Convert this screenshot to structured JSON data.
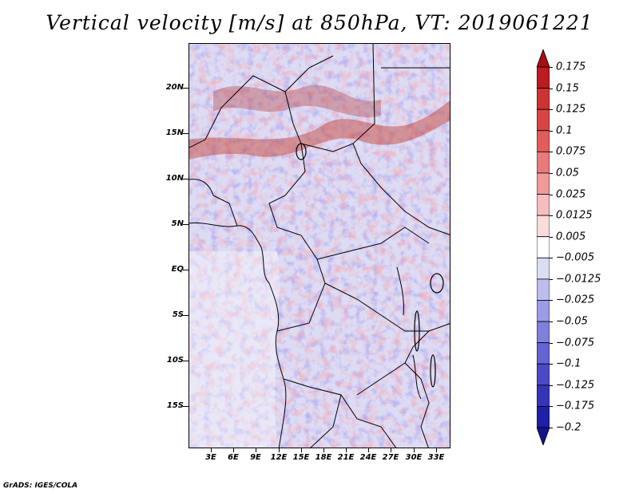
{
  "title": "Vertical velocity [m/s] at 850hPa, VT: 2019061221",
  "footer": "GrADS: IGES/COLA",
  "map": {
    "lat_labels": [
      "20N",
      "15N",
      "10N",
      "5N",
      "EQ",
      "5S",
      "10S",
      "15S"
    ],
    "lon_labels": [
      "3E",
      "6E",
      "9E",
      "12E",
      "15E",
      "18E",
      "21E",
      "24E",
      "27E",
      "30E",
      "33E"
    ]
  },
  "colorbar": {
    "labels": [
      "0.175",
      "0.15",
      "0.125",
      "0.1",
      "0.075",
      "0.05",
      "0.025",
      "0.0125",
      "0.005",
      "−0.005",
      "−0.0125",
      "−0.025",
      "−0.05",
      "−0.075",
      "−0.1",
      "−0.125",
      "−0.175",
      "−0.2"
    ],
    "colors": [
      "#a50f15",
      "#bb1c22",
      "#cc3333",
      "#d94545",
      "#e25c5c",
      "#e97a7a",
      "#f09a9a",
      "#f6bdbd",
      "#fbdcdc",
      "#ffffff",
      "#dcdcf6",
      "#bdbdee",
      "#9c9ce6",
      "#7f7fdc",
      "#6464d2",
      "#4a4ac6",
      "#3535b8",
      "#2020a6",
      "#14148c"
    ]
  }
}
